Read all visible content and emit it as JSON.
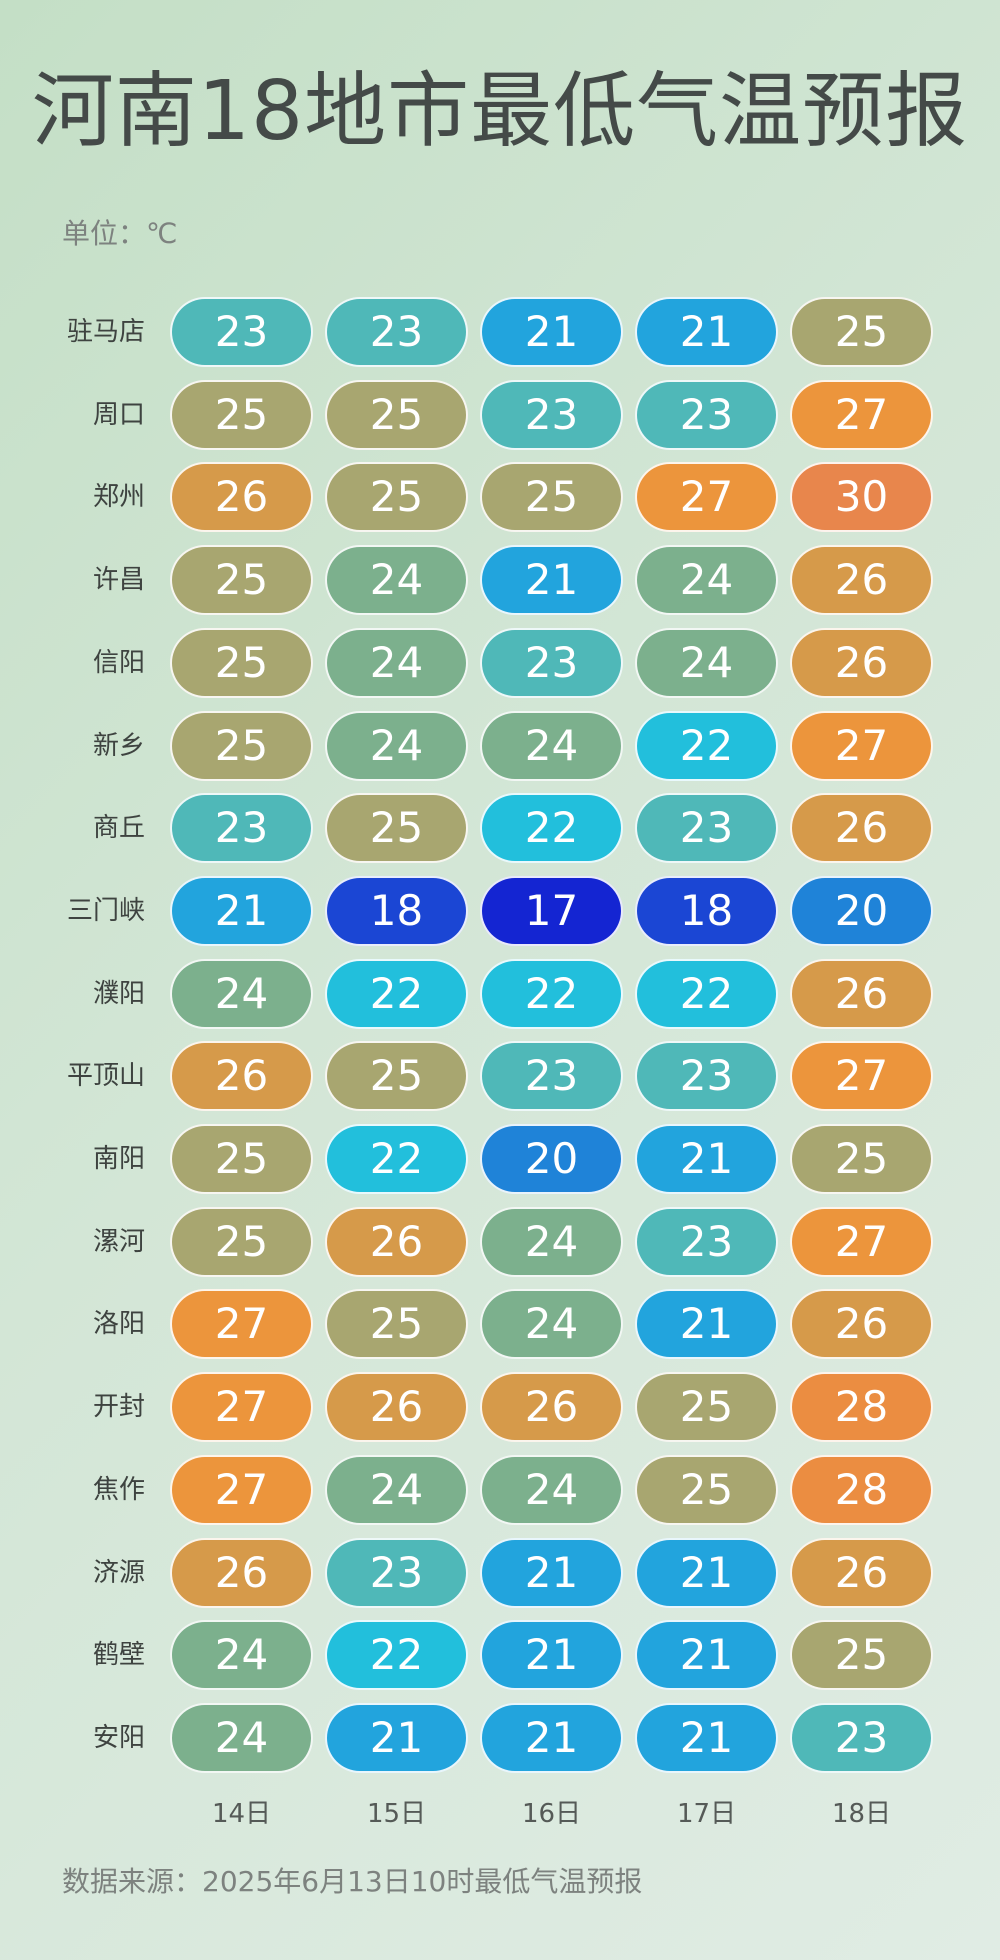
{
  "header": {
    "title": "河南18地市最低气温预报",
    "unit_label": "单位：℃"
  },
  "footer": {
    "source": "数据来源：2025年6月13日10时最低气温预报"
  },
  "colors": {
    "17": "#1425d2",
    "18": "#1b46d4",
    "20": "#1f83d8",
    "21": "#22a4dd",
    "22": "#22bfdc",
    "23": "#4fb8b8",
    "24": "#7cb08d",
    "25": "#a8a670",
    "26": "#d69a4a",
    "27": "#ec953c",
    "28": "#eb8d41",
    "30": "#e8864c"
  },
  "chart_data": {
    "type": "table",
    "title": "河南18地市最低气温预报",
    "unit": "单位：℃",
    "columns": [
      "14日",
      "15日",
      "16日",
      "17日",
      "18日"
    ],
    "rows": [
      {
        "city": "驻马店",
        "values": [
          23,
          23,
          21,
          21,
          25
        ]
      },
      {
        "city": "周口",
        "values": [
          25,
          25,
          23,
          23,
          27
        ]
      },
      {
        "city": "郑州",
        "values": [
          26,
          25,
          25,
          27,
          30
        ]
      },
      {
        "city": "许昌",
        "values": [
          25,
          24,
          21,
          24,
          26
        ]
      },
      {
        "city": "信阳",
        "values": [
          25,
          24,
          23,
          24,
          26
        ]
      },
      {
        "city": "新乡",
        "values": [
          25,
          24,
          24,
          22,
          27
        ]
      },
      {
        "city": "商丘",
        "values": [
          23,
          25,
          22,
          23,
          26
        ]
      },
      {
        "city": "三门峡",
        "values": [
          21,
          18,
          17,
          18,
          20
        ]
      },
      {
        "city": "濮阳",
        "values": [
          24,
          22,
          22,
          22,
          26
        ]
      },
      {
        "city": "平顶山",
        "values": [
          26,
          25,
          23,
          23,
          27
        ]
      },
      {
        "city": "南阳",
        "values": [
          25,
          22,
          20,
          21,
          25
        ]
      },
      {
        "city": "漯河",
        "values": [
          25,
          26,
          24,
          23,
          27
        ]
      },
      {
        "city": "洛阳",
        "values": [
          27,
          25,
          24,
          21,
          26
        ]
      },
      {
        "city": "开封",
        "values": [
          27,
          26,
          26,
          25,
          28
        ]
      },
      {
        "city": "焦作",
        "values": [
          27,
          24,
          24,
          25,
          28
        ]
      },
      {
        "city": "济源",
        "values": [
          26,
          23,
          21,
          21,
          26
        ]
      },
      {
        "city": "鹤壁",
        "values": [
          24,
          22,
          21,
          21,
          25
        ]
      },
      {
        "city": "安阳",
        "values": [
          24,
          21,
          21,
          21,
          23
        ]
      }
    ],
    "source": "数据来源：2025年6月13日10时最低气温预报"
  }
}
